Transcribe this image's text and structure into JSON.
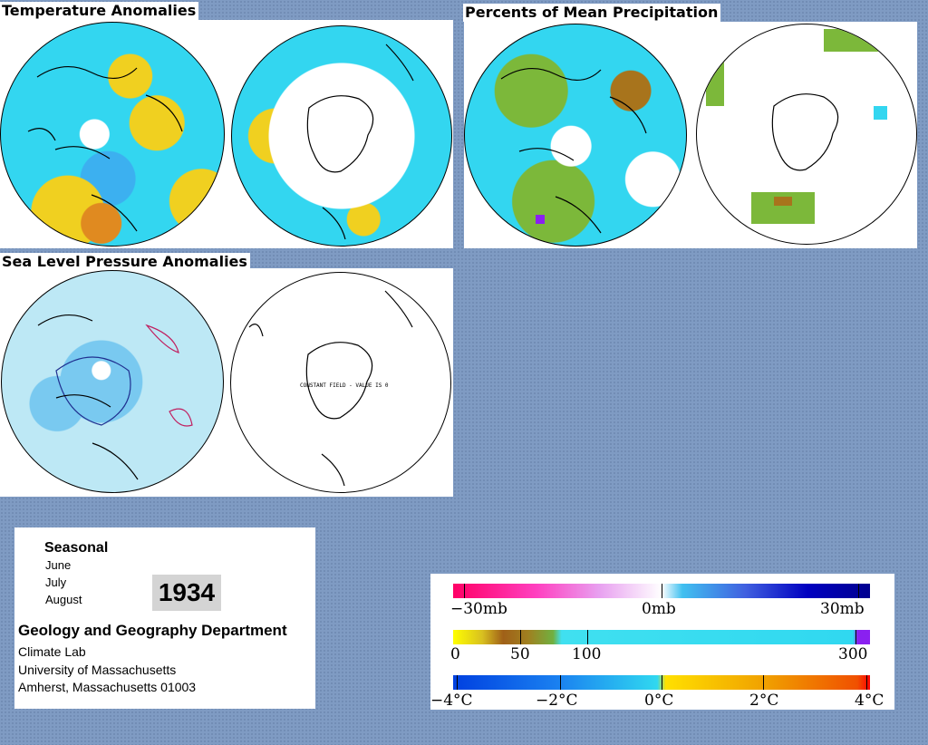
{
  "panels": {
    "temperature_title": "Temperature Anomalies",
    "precip_title": "Percents of Mean Precipitation",
    "pressure_title": "Sea Level Pressure Anomalies",
    "constant_field_note": "CONSTANT FIELD - VALUE IS 0"
  },
  "info": {
    "season": "Seasonal",
    "months": [
      "June",
      "July",
      "August"
    ],
    "year": "1934",
    "department": "Geology and Geography Department",
    "lab": "Climate Lab",
    "university": "University of Massachusetts",
    "address": "Amherst, Massachusetts 01003"
  },
  "legends": {
    "pressure": {
      "min": "−30mb",
      "mid": "0mb",
      "max": "30mb"
    },
    "precip": {
      "l0": "0",
      "l50": "50",
      "l100": "100",
      "l300": "300"
    },
    "temperature": {
      "m4": "−4°C",
      "m2": "−2°C",
      "z": "0°C",
      "p2": "2°C",
      "p4": "4°C"
    }
  },
  "colors": {
    "background": "#7f9bc3",
    "cyan": "#33d6f0",
    "yellow": "#f0d020",
    "orange": "#e07a10",
    "green": "#7cb83a",
    "brown": "#a8741c",
    "purple": "#8a20f0",
    "light_blue": "#bde8f5"
  }
}
